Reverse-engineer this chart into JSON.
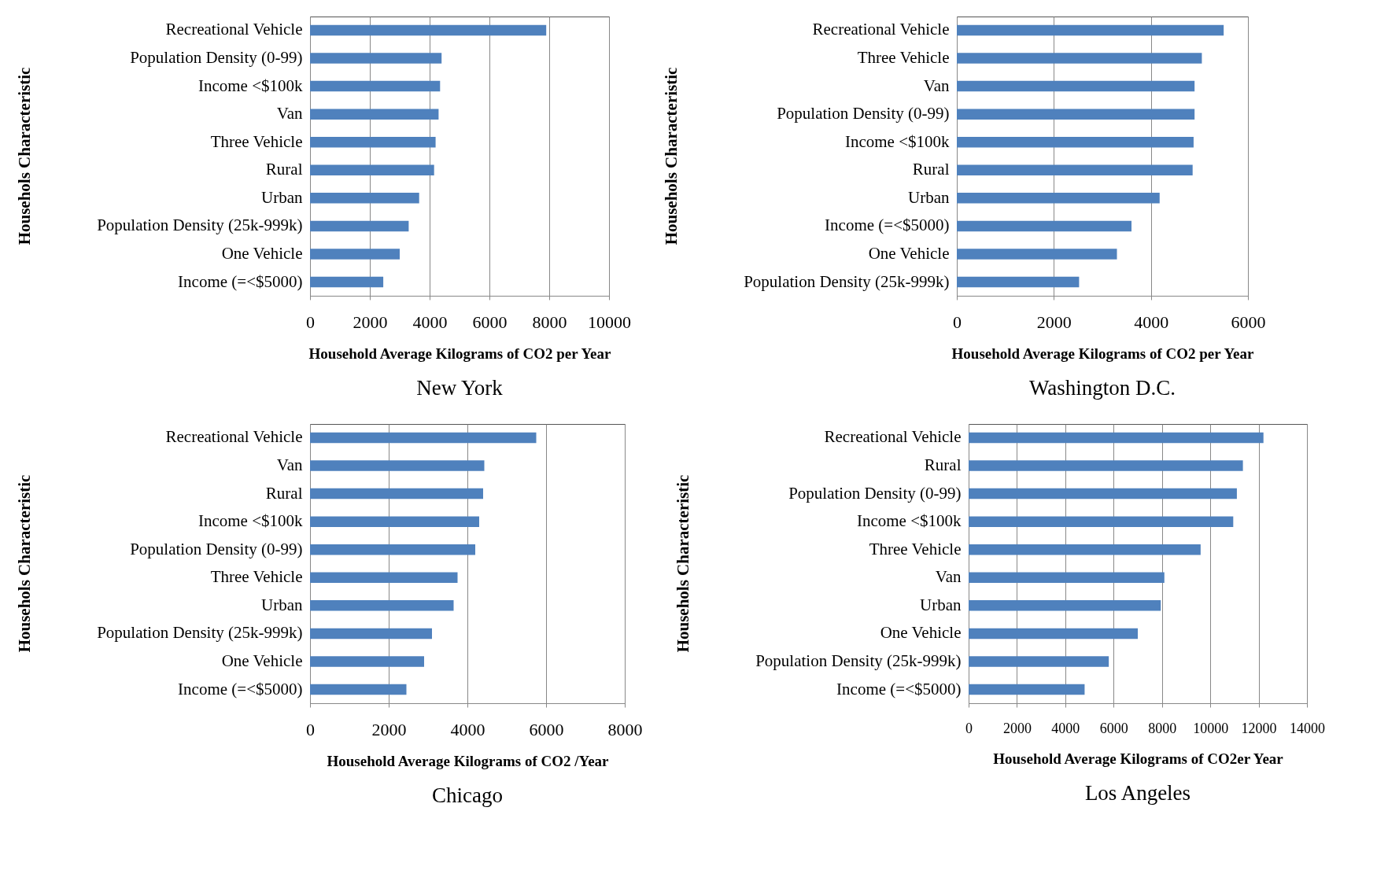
{
  "chart_data": [
    {
      "type": "bar",
      "orientation": "horizontal",
      "title": "New York",
      "xlabel": "Household Average Kilograms of CO2 per Year",
      "ylabel": "Househols Characteristic",
      "categories": [
        "Recreational Vehicle",
        "Population Density (0-99)",
        "Income <$100k",
        "Van",
        "Three Vehicle",
        "Rural",
        "Urban",
        "Population Density (25k-999k)",
        "One Vehicle",
        "Income (=<$5000)"
      ],
      "values": [
        7900,
        4400,
        4350,
        4300,
        4200,
        4150,
        3650,
        3300,
        3000,
        2450
      ],
      "color": "#4f81bd",
      "xlim": [
        0,
        10000
      ],
      "xticks": [
        0,
        2000,
        4000,
        6000,
        8000,
        10000
      ],
      "grid": "x"
    },
    {
      "type": "bar",
      "orientation": "horizontal",
      "title": "Washington D.C.",
      "xlabel": "Household Average Kilograms of CO2 per Year",
      "ylabel": "Househols Characteristic",
      "categories": [
        "Recreational Vehicle",
        "Three Vehicle",
        "Van",
        "Population Density (0-99)",
        "Income <$100k",
        "Rural",
        "Urban",
        "Income (=<$5000)",
        "One Vehicle",
        "Population Density (25k-999k)"
      ],
      "values": [
        5500,
        5050,
        4900,
        4900,
        4880,
        4860,
        4180,
        3600,
        3300,
        2520
      ],
      "color": "#4f81bd",
      "xlim": [
        0,
        6000
      ],
      "xticks": [
        0,
        2000,
        4000,
        6000
      ],
      "grid": "x"
    },
    {
      "type": "bar",
      "orientation": "horizontal",
      "title": "Chicago",
      "xlabel": "Household Average Kilograms of CO2 /Year",
      "ylabel": "Househols Characteristic",
      "categories": [
        "Recreational Vehicle",
        "Van",
        "Rural",
        "Income <$100k",
        "Population Density (0-99)",
        "Three Vehicle",
        "Urban",
        "Population Density (25k-999k)",
        "One Vehicle",
        "Income (=<$5000)"
      ],
      "values": [
        5750,
        4430,
        4400,
        4300,
        4200,
        3750,
        3650,
        3100,
        2900,
        2450
      ],
      "color": "#4f81bd",
      "xlim": [
        0,
        8000
      ],
      "xticks": [
        0,
        2000,
        4000,
        6000,
        8000
      ],
      "grid": "x"
    },
    {
      "type": "bar",
      "orientation": "horizontal",
      "title": "Los Angeles",
      "xlabel": "Household Average Kilograms of CO2er Year",
      "ylabel": "Househols Characteristic",
      "categories": [
        "Recreational Vehicle",
        "Rural",
        "Population Density (0-99)",
        "Income <$100k",
        "Three Vehicle",
        "Van",
        "Urban",
        "One Vehicle",
        "Population Density (25k-999k)",
        "Income (=<$5000)"
      ],
      "values": [
        12200,
        11350,
        11100,
        10950,
        9600,
        8100,
        7950,
        7000,
        5800,
        4800
      ],
      "color": "#4f81bd",
      "xlim": [
        0,
        14000
      ],
      "xticks": [
        0,
        2000,
        4000,
        6000,
        8000,
        10000,
        12000,
        14000
      ],
      "grid": "x"
    }
  ]
}
